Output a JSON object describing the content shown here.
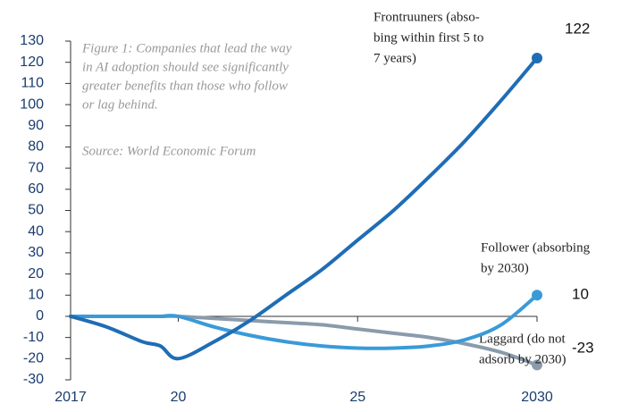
{
  "chart_data": {
    "type": "line",
    "caption": [
      "Figure 1: Companies that lead the way",
      "in AI adoption should see significantly",
      "greater benefits than those who follow",
      "or lag behind."
    ],
    "source": "Source: World Economic Forum",
    "x": [
      2017,
      2018,
      2019,
      2019.5,
      2020,
      2021,
      2022,
      2023,
      2024,
      2025,
      2026,
      2027,
      2028,
      2029,
      2030
    ],
    "series": [
      {
        "name": [
          "Frontruuners (abso-",
          "bing within first 5 to",
          "7 years)"
        ],
        "color": "#1f6db5",
        "values": [
          0,
          -5,
          -12,
          -14,
          -20,
          -12,
          -2,
          10,
          22,
          36,
          50,
          66,
          83,
          102,
          122
        ]
      },
      {
        "name": [
          "Follower (absorbing",
          "by 2030)"
        ],
        "color": "#3a9ad9",
        "values": [
          0,
          0,
          0,
          0,
          0,
          -5,
          -9,
          -12,
          -14,
          -15,
          -15,
          -14,
          -11,
          -4,
          10
        ]
      },
      {
        "name": [
          "Laggard (do not",
          "adsorb by 2030)"
        ],
        "color": "#8a9bab",
        "values": [
          0,
          0,
          0,
          0,
          0,
          -1,
          -2,
          -3,
          -4,
          -6,
          -8,
          -10,
          -13,
          -17,
          -23
        ]
      }
    ],
    "xlim": [
      2017,
      2030
    ],
    "xticks": [
      2017,
      {
        "value": 2020,
        "label": "20"
      },
      {
        "value": 2025,
        "label": "25"
      },
      2030
    ],
    "ylim": [
      -30,
      130
    ],
    "yticks": [
      -30,
      -20,
      -10,
      0,
      10,
      20,
      30,
      40,
      50,
      60,
      70,
      80,
      90,
      100,
      110,
      120,
      130
    ]
  }
}
